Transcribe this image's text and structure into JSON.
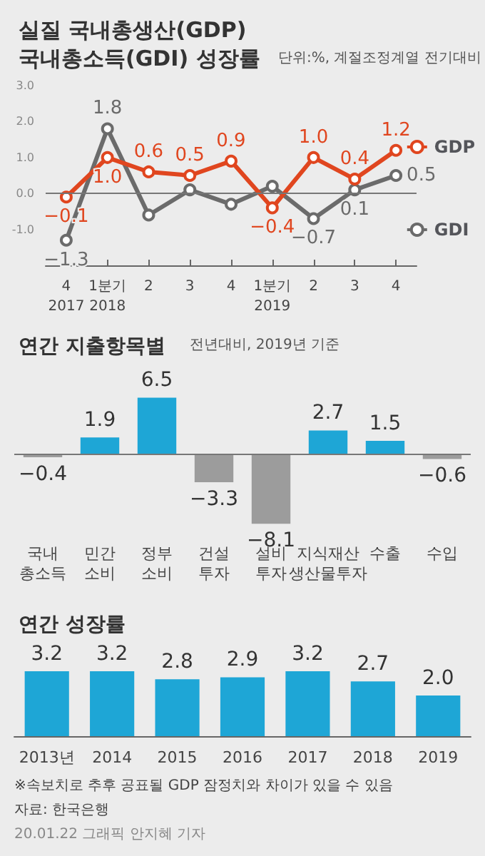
{
  "chart_data": [
    {
      "type": "line",
      "title": "실질 국내총생산(GDP)\n국내총소득(GDI) 성장률",
      "subtitle": "단위:%, 계절조정계열 전기대비",
      "categories": [
        "4\n2017",
        "1분기\n2018",
        "2",
        "3",
        "4",
        "1분기\n2019",
        "2",
        "3",
        "4"
      ],
      "series": [
        {
          "name": "GDI",
          "color": "#6b6b6b",
          "values": [
            -1.3,
            1.8,
            -0.6,
            0.1,
            -0.3,
            0.2,
            -0.7,
            0.1,
            0.5
          ],
          "value_labels": [
            "−1.3",
            "1.8",
            null,
            null,
            null,
            null,
            "−0.7",
            "0.1",
            "0.5"
          ]
        },
        {
          "name": "GDP",
          "color": "#e0461f",
          "values": [
            -0.1,
            1.0,
            0.6,
            0.5,
            0.9,
            -0.4,
            1.0,
            0.4,
            1.2
          ],
          "value_labels": [
            "−0.1",
            "1.0",
            "0.6",
            "0.5",
            "0.9",
            "−0.4",
            "1.0",
            "0.4",
            "1.2"
          ]
        }
      ],
      "ylim": [
        -2,
        3
      ],
      "yticks": [
        {
          "value": -1,
          "label": "-1.0"
        },
        {
          "value": 0,
          "label": "0.0"
        },
        {
          "value": 1,
          "label": "1.0"
        },
        {
          "value": 2,
          "label": "2.0"
        },
        {
          "value": 3,
          "label": "3.0"
        }
      ],
      "ref_lines": [
        {
          "axis": "y",
          "value": 0
        }
      ],
      "legend": "right",
      "marker": "circle"
    },
    {
      "type": "bar",
      "title": "연간 지출항목별",
      "subtitle": "전년대비, 2019년 기준",
      "categories": [
        "국내 총소득",
        "민간 소비",
        "정부 소비",
        "건설 투자",
        "설비 투자",
        "지식재산 생산물투자",
        "수출",
        "수입"
      ],
      "values": [
        -0.4,
        1.9,
        6.5,
        -3.3,
        -8.1,
        2.7,
        1.5,
        -0.6
      ],
      "colors": [
        "#9c9c9c",
        "#1ea6d6",
        "#1ea6d6",
        "#9c9c9c",
        "#9c9c9c",
        "#1ea6d6",
        "#1ea6d6",
        "#9c9c9c"
      ],
      "value_labels": [
        "−0.4",
        "1.9",
        "6.5",
        "−3.3",
        "−8.1",
        "2.7",
        "1.5",
        "−0.6"
      ],
      "ref_lines": [
        {
          "axis": "y",
          "value": 0
        }
      ]
    },
    {
      "type": "bar",
      "title": "연간 성장률",
      "categories": [
        "2013년",
        "2014",
        "2015",
        "2016",
        "2017",
        "2018",
        "2019"
      ],
      "values": [
        3.2,
        3.2,
        2.8,
        2.9,
        3.2,
        2.7,
        2.0
      ],
      "color": "#1ea6d6",
      "value_labels": [
        "3.2",
        "3.2",
        "2.8",
        "2.9",
        "3.2",
        "2.7",
        "2.0"
      ],
      "annotations": [
        "※속보치로 추후 공표될 GDP 잠정치와 차이가 있을 수 있음",
        "자료: 한국은행",
        "20.01.22 그래픽 안지혜 기자"
      ]
    }
  ]
}
